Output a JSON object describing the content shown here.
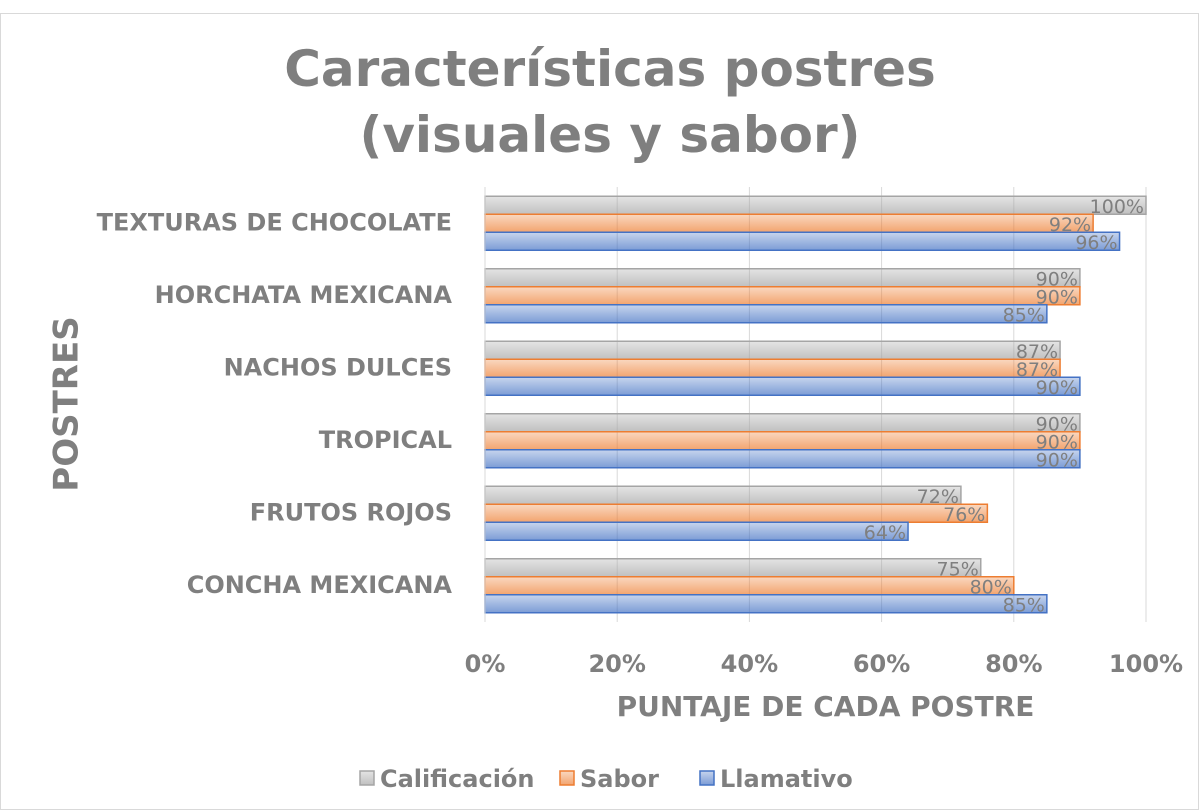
{
  "chart_data": {
    "type": "bar",
    "orientation": "horizontal",
    "title": "Características postres (visuales y sabor)",
    "xlabel": "PUNTAJE DE CADA POSTRE",
    "ylabel": "POSTRES",
    "categories": [
      "TEXTURAS DE CHOCOLATE",
      "HORCHATA MEXICANA",
      "NACHOS DULCES",
      "TROPICAL",
      "FRUTOS ROJOS",
      "CONCHA MEXICANA"
    ],
    "series": [
      {
        "name": "Calificación",
        "color": "#a5a5a5",
        "values": [
          100,
          90,
          87,
          90,
          72,
          75
        ],
        "value_labels": [
          "100%",
          "90%",
          "87%",
          "90%",
          "72%",
          "75%"
        ]
      },
      {
        "name": "Sabor",
        "color": "#ed7d31",
        "values": [
          92,
          90,
          87,
          90,
          76,
          80
        ],
        "value_labels": [
          "92%",
          "90%",
          "87%",
          "90%",
          "76%",
          "80%"
        ]
      },
      {
        "name": "Llamativo",
        "color": "#4472c4",
        "values": [
          96,
          85,
          90,
          90,
          64,
          85
        ],
        "value_labels": [
          "96%",
          "85%",
          "90%",
          "90%",
          "64%",
          "85%"
        ]
      }
    ],
    "xlim": [
      0,
      100
    ],
    "xticks": [
      {
        "value": 0,
        "label": "0%"
      },
      {
        "value": 20,
        "label": "20%"
      },
      {
        "value": 40,
        "label": "40%"
      },
      {
        "value": 60,
        "label": "60%"
      },
      {
        "value": 80,
        "label": "80%"
      },
      {
        "value": 100,
        "label": "100%"
      }
    ],
    "grid": true,
    "legend": "bottom"
  }
}
